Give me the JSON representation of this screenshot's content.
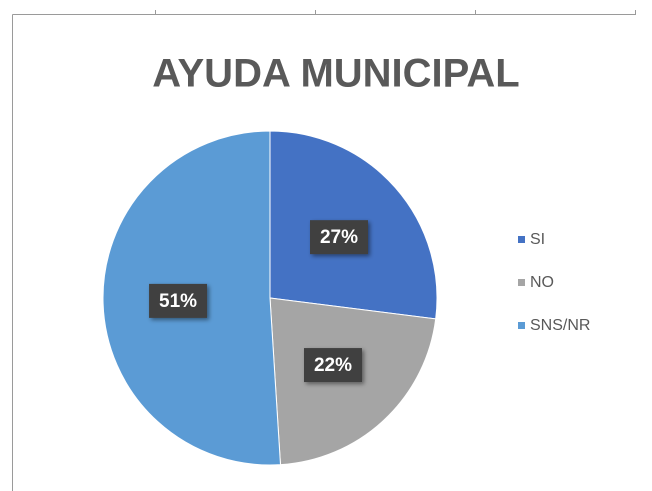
{
  "chart_data": {
    "type": "pie",
    "title": "AYUDA MUNICIPAL",
    "categories": [
      "SI",
      "NO",
      "SNS/NR"
    ],
    "values": [
      27,
      22,
      51
    ],
    "value_labels": [
      "27%",
      "22%",
      "51%"
    ],
    "colors": [
      "#4472c4",
      "#a5a5a5",
      "#5b9bd5"
    ],
    "legend": "right"
  }
}
